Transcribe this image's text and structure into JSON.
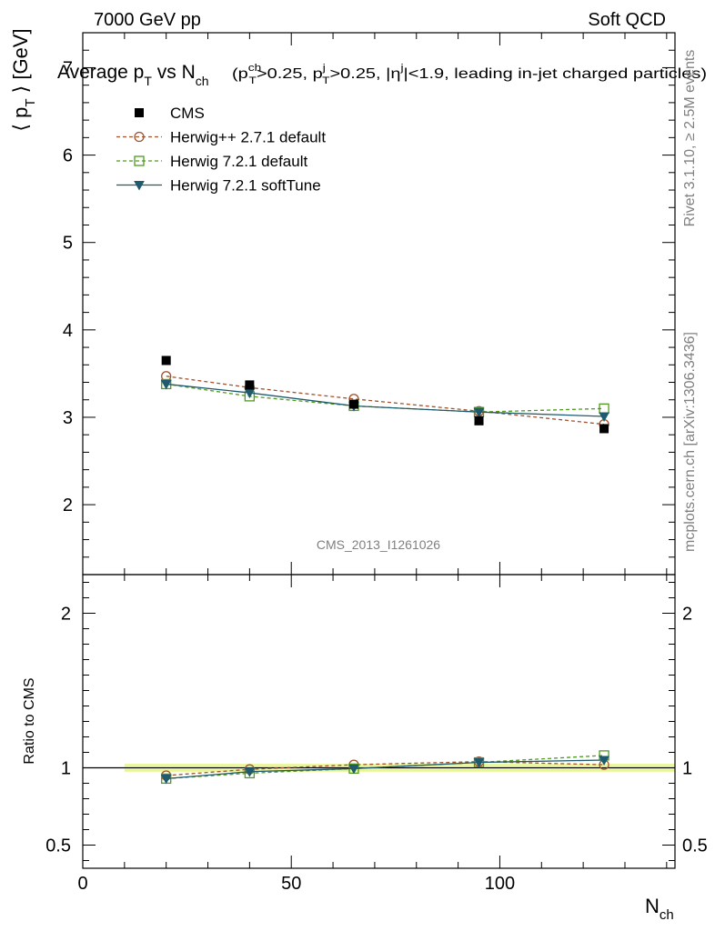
{
  "header": {
    "left": "7000 GeV pp",
    "right": "Soft QCD"
  },
  "side_text": {
    "rivet": "Rivet 3.1.10, ≥ 2.5M events",
    "mcplots": "mcplots.cern.ch [arXiv:1306.3436]"
  },
  "watermark": "CMS_2013_I1261026",
  "chart_data": {
    "type": "line",
    "title": "Average p_T vs N_ch (p_T^ch>0.25, p_T^j>0.25, |η^j|<1.9, leading in-jet charged particles)",
    "title_main": "Average p",
    "title_main_sub": "T",
    "title_vs": " vs N",
    "title_vs_sub": "ch",
    "title_cut": "(p_T^ch>0.25, p_T^j>0.25, |η^j|<1.9, leading in-jet charged particles)",
    "ylabel": "⟨ p_T ⟩ [GeV]",
    "xlabel": "N_ch",
    "ratio_ylabel": "Ratio to CMS",
    "xlim": [
      0,
      142
    ],
    "ylim": [
      1.2,
      7.4
    ],
    "ratio_ylim": [
      0.35,
      2.25
    ],
    "xticks": [
      0,
      50,
      100
    ],
    "yticks": [
      2,
      3,
      4,
      5,
      6,
      7
    ],
    "ratio_yticks": [
      0.5,
      1,
      2
    ],
    "legend_position": "top-left",
    "x": [
      20,
      40,
      65,
      95,
      125
    ],
    "data": {
      "name": "CMS",
      "values": [
        3.65,
        3.37,
        3.15,
        2.96,
        2.87
      ],
      "errors": [
        0.02,
        0.02,
        0.02,
        0.02,
        0.02
      ],
      "band_x": [
        10,
        142
      ],
      "color": "#000000"
    },
    "series": [
      {
        "name": "Herwig++ 2.7.1 default",
        "values": [
          3.47,
          3.34,
          3.21,
          3.07,
          2.92
        ],
        "ratio": [
          0.95,
          0.99,
          1.02,
          1.04,
          1.02
        ],
        "color": "#a0522d",
        "marker": "circle",
        "dash": "4,3"
      },
      {
        "name": "Herwig 7.2.1 default",
        "values": [
          3.38,
          3.24,
          3.13,
          3.06,
          3.1
        ],
        "ratio": [
          0.93,
          0.965,
          0.995,
          1.035,
          1.08
        ],
        "color": "#4f9a1f",
        "marker": "square",
        "dash": "4,3"
      },
      {
        "name": "Herwig 7.2.1 softTune",
        "values": [
          3.38,
          3.28,
          3.13,
          3.06,
          3.01
        ],
        "ratio": [
          0.93,
          0.975,
          0.995,
          1.035,
          1.05
        ],
        "color": "#1f5a6e",
        "marker": "triangle-down",
        "dash": ""
      }
    ]
  }
}
